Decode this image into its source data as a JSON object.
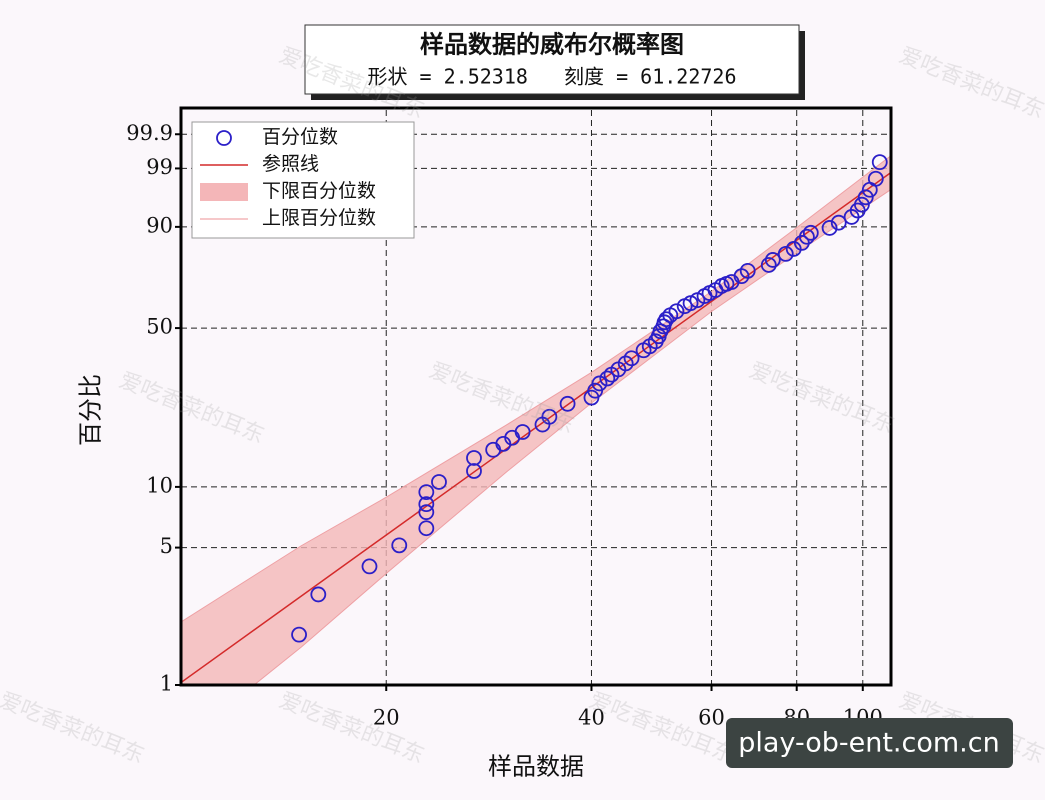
{
  "chart_data": {
    "type": "probability",
    "title": "样品数据的威布尔概率图",
    "subtitle": "形状 = 2.52318   刻度 = 61.22726",
    "xlabel": "样品数据",
    "ylabel": "百分比",
    "xscale": "log",
    "yscale": "weibull",
    "xlim": [
      10,
      110
    ],
    "ylim": [
      1,
      99.99
    ],
    "xticks": [
      20,
      40,
      60,
      80,
      100
    ],
    "yticks": [
      1,
      5,
      10,
      50,
      90,
      99,
      99.9
    ],
    "grid": true,
    "legend": "upper left",
    "series": [
      {
        "name": "百分位数",
        "type": "scatter",
        "color": "#2b1fc8",
        "x": [
          14.9,
          15.9,
          18.9,
          20.9,
          22.9,
          22.9,
          22.9,
          22.9,
          23.9,
          26.9,
          26.9,
          28.7,
          29.7,
          30.6,
          31.7,
          33.9,
          34.7,
          36.9,
          40.0,
          40.5,
          41.1,
          42.2,
          42.8,
          43.8,
          44.9,
          45.8,
          47.7,
          48.7,
          49.7,
          50.2,
          50.5,
          51.0,
          51.2,
          51.5,
          52.2,
          53.3,
          54.8,
          55.9,
          57.2,
          58.6,
          59.6,
          60.8,
          62.1,
          63.1,
          64.2,
          66.4,
          67.8,
          72.8,
          73.8,
          77.1,
          79.2,
          81.4,
          82.8,
          83.9,
          89.4,
          92.2,
          96.3,
          98.3,
          99.7,
          101.0,
          102.4,
          104.5,
          105.9
        ],
        "values": [
          1.81,
          2.9,
          4.02,
          5.13,
          6.25,
          7.51,
          8.23,
          9.43,
          10.57,
          11.95,
          13.8,
          15.1,
          16.1,
          17.2,
          18.3,
          19.8,
          21.5,
          24.6,
          26.2,
          28.1,
          30.2,
          31.7,
          32.9,
          34.6,
          36.6,
          38.4,
          41.3,
          42.8,
          44.7,
          46.7,
          48.7,
          50.7,
          52.4,
          53.7,
          55.4,
          57.1,
          59.3,
          60.6,
          61.9,
          63.7,
          65.0,
          66.3,
          68.1,
          69.0,
          69.8,
          72.3,
          74.5,
          76.9,
          78.9,
          81.2,
          83.0,
          85.1,
          87.1,
          88.3,
          89.7,
          91.1,
          92.5,
          93.9,
          95.0,
          96.2,
          97.2,
          98.3,
          99.3
        ]
      },
      {
        "name": "参照线",
        "type": "line",
        "color": "#d42a2a",
        "x": [
          10,
          110
        ],
        "values": [
          1.03,
          98.76
        ]
      },
      {
        "name": "下限百分位数",
        "type": "band",
        "color": "#f4b6b8",
        "x": [
          10,
          15,
          20,
          30,
          40,
          60,
          80,
          110
        ],
        "values": [
          0.5,
          1.56,
          3.7,
          11.8,
          24.8,
          57.0,
          81.6,
          97.24
        ]
      },
      {
        "name": "上限百分位数",
        "type": "band",
        "color": "#f4b6b8",
        "x": [
          10,
          15,
          20,
          30,
          40,
          60,
          80,
          110
        ],
        "values": [
          2.1,
          5.1,
          8.9,
          19.7,
          33.6,
          65.7,
          89.8,
          99.53
        ]
      }
    ],
    "watermark": "爱吃香菜的耳东",
    "source": "play-ob-ent.com.cn"
  }
}
